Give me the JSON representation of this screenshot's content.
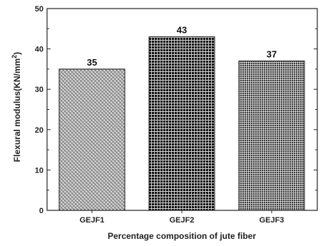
{
  "chart_data": {
    "type": "bar",
    "categories": [
      "GEJF1",
      "GEJF2",
      "GEJF3"
    ],
    "values": [
      35,
      43,
      37
    ],
    "data_labels": [
      "35",
      "43",
      "37"
    ],
    "xlabel": "Percentage composition of jute fiber",
    "ylabel_main": "Flexural modulus(KN/mm",
    "ylabel_sup": "2",
    "ylabel_close": ")",
    "ylim": [
      0,
      50
    ],
    "yticks": [
      0,
      10,
      20,
      30,
      40,
      50
    ],
    "grid": false,
    "bar_patterns": [
      "crosshatch-light",
      "grid-dark",
      "grid-medium"
    ]
  }
}
